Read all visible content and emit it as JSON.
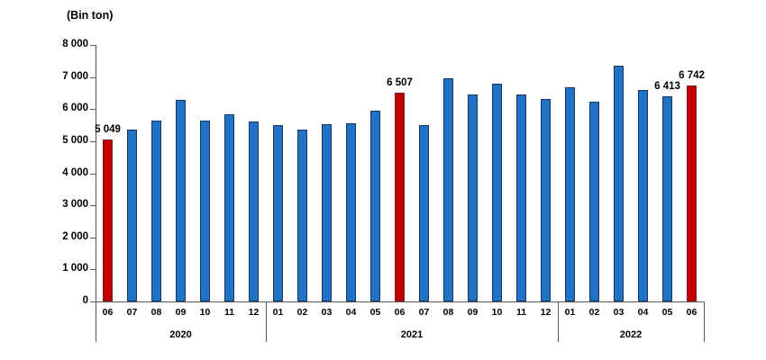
{
  "unit_label": "(Bin ton)",
  "colors": {
    "bar_blue": "#1F72C4",
    "bar_blue_border": "#17375E",
    "bar_red": "#C00000",
    "bar_red_border": "#7F1F1F",
    "axis_line": "#595959",
    "text": "#000000"
  },
  "chart_data": {
    "type": "bar",
    "title": "",
    "ylabel": "(Bin ton)",
    "xlabel": "",
    "ylim": [
      0,
      8000
    ],
    "ytick_step": 1000,
    "ytick_labels": [
      "0",
      "1 000",
      "2 000",
      "3 000",
      "4 000",
      "5 000",
      "6 000",
      "7 000",
      "8 000"
    ],
    "grid": false,
    "legend": "none",
    "highlight_note": "June bars of each year are red; all others blue",
    "bars": [
      {
        "year": "2020",
        "month": "06",
        "value": 5049,
        "highlight": true,
        "label": "5 049"
      },
      {
        "year": "2020",
        "month": "07",
        "value": 5360,
        "highlight": false,
        "label": ""
      },
      {
        "year": "2020",
        "month": "08",
        "value": 5640,
        "highlight": false,
        "label": ""
      },
      {
        "year": "2020",
        "month": "09",
        "value": 6300,
        "highlight": false,
        "label": ""
      },
      {
        "year": "2020",
        "month": "10",
        "value": 5640,
        "highlight": false,
        "label": ""
      },
      {
        "year": "2020",
        "month": "11",
        "value": 5840,
        "highlight": false,
        "label": ""
      },
      {
        "year": "2020",
        "month": "12",
        "value": 5620,
        "highlight": false,
        "label": ""
      },
      {
        "year": "2021",
        "month": "01",
        "value": 5500,
        "highlight": false,
        "label": ""
      },
      {
        "year": "2021",
        "month": "02",
        "value": 5370,
        "highlight": false,
        "label": ""
      },
      {
        "year": "2021",
        "month": "03",
        "value": 5520,
        "highlight": false,
        "label": ""
      },
      {
        "year": "2021",
        "month": "04",
        "value": 5560,
        "highlight": false,
        "label": ""
      },
      {
        "year": "2021",
        "month": "05",
        "value": 5960,
        "highlight": false,
        "label": ""
      },
      {
        "year": "2021",
        "month": "06",
        "value": 6507,
        "highlight": true,
        "label": "6 507"
      },
      {
        "year": "2021",
        "month": "07",
        "value": 5490,
        "highlight": false,
        "label": ""
      },
      {
        "year": "2021",
        "month": "08",
        "value": 6950,
        "highlight": false,
        "label": ""
      },
      {
        "year": "2021",
        "month": "09",
        "value": 6450,
        "highlight": false,
        "label": ""
      },
      {
        "year": "2021",
        "month": "10",
        "value": 6800,
        "highlight": false,
        "label": ""
      },
      {
        "year": "2021",
        "month": "11",
        "value": 6470,
        "highlight": false,
        "label": ""
      },
      {
        "year": "2021",
        "month": "12",
        "value": 6310,
        "highlight": false,
        "label": ""
      },
      {
        "year": "2022",
        "month": "01",
        "value": 6670,
        "highlight": false,
        "label": ""
      },
      {
        "year": "2022",
        "month": "02",
        "value": 6240,
        "highlight": false,
        "label": ""
      },
      {
        "year": "2022",
        "month": "03",
        "value": 7360,
        "highlight": false,
        "label": ""
      },
      {
        "year": "2022",
        "month": "04",
        "value": 6590,
        "highlight": false,
        "label": ""
      },
      {
        "year": "2022",
        "month": "05",
        "value": 6413,
        "highlight": false,
        "label": "6 413"
      },
      {
        "year": "2022",
        "month": "06",
        "value": 6742,
        "highlight": true,
        "label": "6 742"
      }
    ]
  }
}
